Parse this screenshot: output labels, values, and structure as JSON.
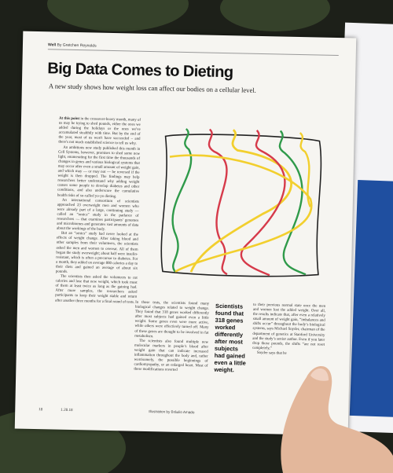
{
  "header": {
    "section": "Well",
    "byline": "By Gretchen Reynolds"
  },
  "title": "Big Data Comes to Dieting",
  "subtitle": "A new study shows how weight loss can affect our bodies on a cellular level.",
  "columns": [
    {
      "lead": "At this point",
      "paragraphs": [
        "in the crossover-heavy month, many of us may be trying to shed pounds, either the ones we added during the holidays or the ones we've accumulated stealthily with time. But by the end of the year, most of us won't have succeeded – and there's not much established science to tell us why.",
        "An ambitious new study published this month in Cell Systems, however, promises to shed some new light, enumerating for the first time the thousands of changes in genes and various biological systems that may occur after even a small amount of weight gain, and which may — or may not — be reversed if the weight is then dropped. The findings may help researchers better understand why adding weight causes some people to develop diabetes and other conditions, and also underscore the cumulative health risks of so-called yo-yo dieting.",
        "An international consortium of scientists approached 23 overweight men and women who were already part of a large, continuing study — called an “omics” study in the parlance of researchers — that examines participants’ genomes and microbiomes and generates vast amounts of data about the workings of the body.",
        "But an “omics” study had never looked at the effects of weight change. After taking blood and other samples from their volunteers, the scientists asked the men and women to overeat. All of them began the study overweight; about half were insulin-resistant, which is often a precursor to diabetes. For a month, they added on average 880 calories a day to their diets and gained an average of about six pounds.",
        "The scientists then asked the volunteers to cut calories and lose that new weight, which took most of them at least twice as long as the gaining had. After more samples, the researchers asked participants to keep their weight stable and return after another three months for a final round of tests."
      ]
    },
    {
      "paragraphs": [
        "In those tests, the scientists found many biological changes related to weight change. They found that 318 genes worked differently after most subjects had gained even a little weight. Some genes even were more active, while others were effectively turned off. Many of these genes are thought to be involved in fat metabolism.",
        "The scientists also found multiple new molecular markers in people’s blood after weight gain that can indicate increased inflammation throughout the body and, rather worrisomely, the possible beginnings of cardiomyopathy, or an enlarged heart. Most of these modifications reverted"
      ]
    },
    {
      "paragraphs": [
        "to their previous normal state once the men and women lost the added weight. Over all, the results indicate that, after even a relatively small amount of weight gain, “imbalances and shifts occur” throughout the body’s biological systems, says Michael Snyder, chairman of the department of genetics at Stanford University and the study’s senior author. Even if you later drop those pounds, the shifts “are not reset completely,”",
        "Snyder says that he"
      ]
    }
  ],
  "pull_quote": "Scientists found that 318 genes worked differently after most subjects had gained even a little weight.",
  "footer": {
    "page": "18",
    "date": "1.28.18",
    "credit": "Illustration by Bráulio Amado"
  }
}
